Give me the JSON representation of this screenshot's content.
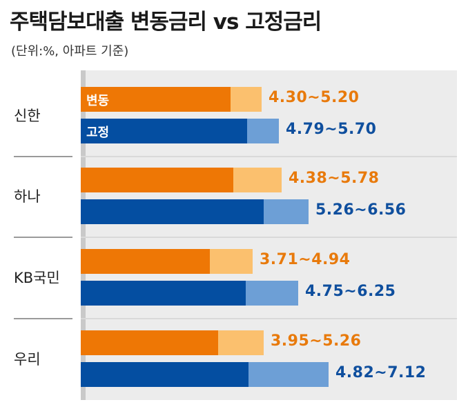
{
  "title": "주택담보대출 변동금리 vs 고정금리",
  "subtitle": "(단위:%, 아파트 기준)",
  "colors": {
    "variable_min": "#ee7705",
    "variable_max": "#fbc06e",
    "fixed_min": "#044ea1",
    "fixed_max": "#6d9fd6",
    "variable_text": "#e87a0c",
    "fixed_text": "#0f4f9e"
  },
  "chart_data": {
    "type": "bar",
    "categories": [
      "신한",
      "하나",
      "KB국민",
      "우리"
    ],
    "series": [
      {
        "name": "변동",
        "min": [
          4.3,
          4.38,
          3.71,
          3.95
        ],
        "max": [
          5.2,
          5.78,
          4.94,
          5.26
        ],
        "labels": [
          "4.30~5.20",
          "4.38~5.78",
          "3.71~4.94",
          "3.95~5.26"
        ]
      },
      {
        "name": "고정",
        "min": [
          4.79,
          5.26,
          4.75,
          4.82
        ],
        "max": [
          5.7,
          6.56,
          6.25,
          7.12
        ],
        "labels": [
          "4.79~5.70",
          "5.26~6.56",
          "4.75~6.25",
          "4.82~7.12"
        ]
      }
    ]
  }
}
